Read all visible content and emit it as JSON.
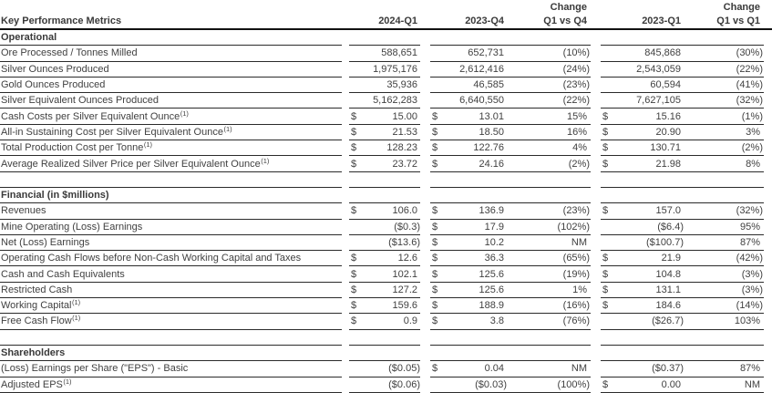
{
  "table": {
    "title": "Key Performance Metrics",
    "header": {
      "change_label": "Change",
      "periods": [
        "2024-Q1",
        "2023-Q4",
        "Q1 vs Q4",
        "2023-Q1",
        "Q1 vs Q1"
      ]
    },
    "columns": [
      "2024-Q1",
      "2023-Q4",
      "Change Q1 vs Q4",
      "2023-Q1",
      "Change Q1 vs Q1"
    ],
    "sections": [
      {
        "header": "Operational",
        "rows": [
          {
            "label": "Ore Processed / Tonnes Milled",
            "sup": "",
            "c": [
              {
                "d": "",
                "v": "588,651"
              },
              {
                "d": "",
                "v": "652,731"
              },
              {
                "v": "(10%)"
              },
              {
                "d": "",
                "v": "845,868"
              },
              {
                "v": "(30%)"
              }
            ]
          },
          {
            "label": "Silver Ounces Produced",
            "sup": "",
            "c": [
              {
                "d": "",
                "v": "1,975,176"
              },
              {
                "d": "",
                "v": "2,612,416"
              },
              {
                "v": "(24%)"
              },
              {
                "d": "",
                "v": "2,543,059"
              },
              {
                "v": "(22%)"
              }
            ]
          },
          {
            "label": "Gold Ounces Produced",
            "sup": "",
            "c": [
              {
                "d": "",
                "v": "35,936"
              },
              {
                "d": "",
                "v": "46,585"
              },
              {
                "v": "(23%)"
              },
              {
                "d": "",
                "v": "60,594"
              },
              {
                "v": "(41%)"
              }
            ]
          },
          {
            "label": "Silver Equivalent Ounces Produced",
            "sup": "",
            "c": [
              {
                "d": "",
                "v": "5,162,283"
              },
              {
                "d": "",
                "v": "6,640,550"
              },
              {
                "v": "(22%)"
              },
              {
                "d": "",
                "v": "7,627,105"
              },
              {
                "v": "(32%)"
              }
            ]
          },
          {
            "label": "Cash Costs per Silver Equivalent Ounce",
            "sup": "(1)",
            "c": [
              {
                "d": "$",
                "v": "15.00"
              },
              {
                "d": "$",
                "v": "13.01"
              },
              {
                "v": "15%"
              },
              {
                "d": "$",
                "v": "15.16"
              },
              {
                "v": "(1%)"
              }
            ]
          },
          {
            "label": "All-in Sustaining Cost per Silver Equivalent Ounce",
            "sup": "(1)",
            "c": [
              {
                "d": "$",
                "v": "21.53"
              },
              {
                "d": "$",
                "v": "18.50"
              },
              {
                "v": "16%"
              },
              {
                "d": "$",
                "v": "20.90"
              },
              {
                "v": "3%"
              }
            ]
          },
          {
            "label": "Total Production Cost per Tonne",
            "sup": "(1)",
            "c": [
              {
                "d": "$",
                "v": "128.23"
              },
              {
                "d": "$",
                "v": "122.76"
              },
              {
                "v": "4%"
              },
              {
                "d": "$",
                "v": "130.71"
              },
              {
                "v": "(2%)"
              }
            ]
          },
          {
            "label": "Average Realized Silver Price per Silver Equivalent Ounce",
            "sup": "(1)",
            "c": [
              {
                "d": "$",
                "v": "23.72"
              },
              {
                "d": "$",
                "v": "24.16"
              },
              {
                "v": "(2%)"
              },
              {
                "d": "$",
                "v": "21.98"
              },
              {
                "v": "8%"
              }
            ]
          }
        ]
      },
      {
        "header": "Financial (in $millions)",
        "rows": [
          {
            "label": "Revenues",
            "sup": "",
            "c": [
              {
                "d": "$",
                "v": "106.0"
              },
              {
                "d": "$",
                "v": "136.9"
              },
              {
                "v": "(23%)"
              },
              {
                "d": "$",
                "v": "157.0"
              },
              {
                "v": "(32%)"
              }
            ]
          },
          {
            "label": "Mine Operating (Loss) Earnings",
            "sup": "",
            "c": [
              {
                "d": "",
                "v": "($0.3)"
              },
              {
                "d": "$",
                "v": "17.9"
              },
              {
                "v": "(102%)"
              },
              {
                "d": "",
                "v": "($6.4)"
              },
              {
                "v": "95%"
              }
            ]
          },
          {
            "label": "Net (Loss) Earnings",
            "sup": "",
            "c": [
              {
                "d": "",
                "v": "($13.6)"
              },
              {
                "d": "$",
                "v": "10.2"
              },
              {
                "v": "NM"
              },
              {
                "d": "",
                "v": "($100.7)"
              },
              {
                "v": "87%"
              }
            ]
          },
          {
            "label": "Operating Cash Flows before Non-Cash Working Capital and Taxes",
            "sup": "",
            "c": [
              {
                "d": "$",
                "v": "12.6"
              },
              {
                "d": "$",
                "v": "36.3"
              },
              {
                "v": "(65%)"
              },
              {
                "d": "$",
                "v": "21.9"
              },
              {
                "v": "(42%)"
              }
            ]
          },
          {
            "label": "Cash and Cash Equivalents",
            "sup": "",
            "c": [
              {
                "d": "$",
                "v": "102.1"
              },
              {
                "d": "$",
                "v": "125.6"
              },
              {
                "v": "(19%)"
              },
              {
                "d": "$",
                "v": "104.8"
              },
              {
                "v": "(3%)"
              }
            ]
          },
          {
            "label": "Restricted Cash",
            "sup": "",
            "c": [
              {
                "d": "$",
                "v": "127.2"
              },
              {
                "d": "$",
                "v": "125.6"
              },
              {
                "v": "1%"
              },
              {
                "d": "$",
                "v": "131.1"
              },
              {
                "v": "(3%)"
              }
            ]
          },
          {
            "label": "Working Capital",
            "sup": "(1)",
            "c": [
              {
                "d": "$",
                "v": "159.6"
              },
              {
                "d": "$",
                "v": "188.9"
              },
              {
                "v": "(16%)"
              },
              {
                "d": "$",
                "v": "184.6"
              },
              {
                "v": "(14%)"
              }
            ]
          },
          {
            "label": "Free Cash Flow",
            "sup": "(1)",
            "c": [
              {
                "d": "$",
                "v": "0.9"
              },
              {
                "d": "$",
                "v": "3.8"
              },
              {
                "v": "(76%)"
              },
              {
                "d": "",
                "v": "($26.7)"
              },
              {
                "v": "103%"
              }
            ]
          }
        ]
      },
      {
        "header": "Shareholders",
        "rows": [
          {
            "label": "(Loss) Earnings per Share (\"EPS\") - Basic",
            "sup": "",
            "c": [
              {
                "d": "",
                "v": "($0.05)"
              },
              {
                "d": "$",
                "v": "0.04"
              },
              {
                "v": "NM"
              },
              {
                "d": "",
                "v": "($0.37)"
              },
              {
                "v": "87%"
              }
            ]
          },
          {
            "label": "Adjusted EPS",
            "sup": "(1)",
            "c": [
              {
                "d": "",
                "v": "($0.06)"
              },
              {
                "d": "",
                "v": "($0.03)"
              },
              {
                "v": "(100%)"
              },
              {
                "d": "$",
                "v": "0.00"
              },
              {
                "v": "NM"
              }
            ]
          }
        ]
      }
    ],
    "colors": {
      "text": "#414141",
      "row_line": "#2b2b2b",
      "header_line": "#111111",
      "background": "#ffffff"
    }
  }
}
